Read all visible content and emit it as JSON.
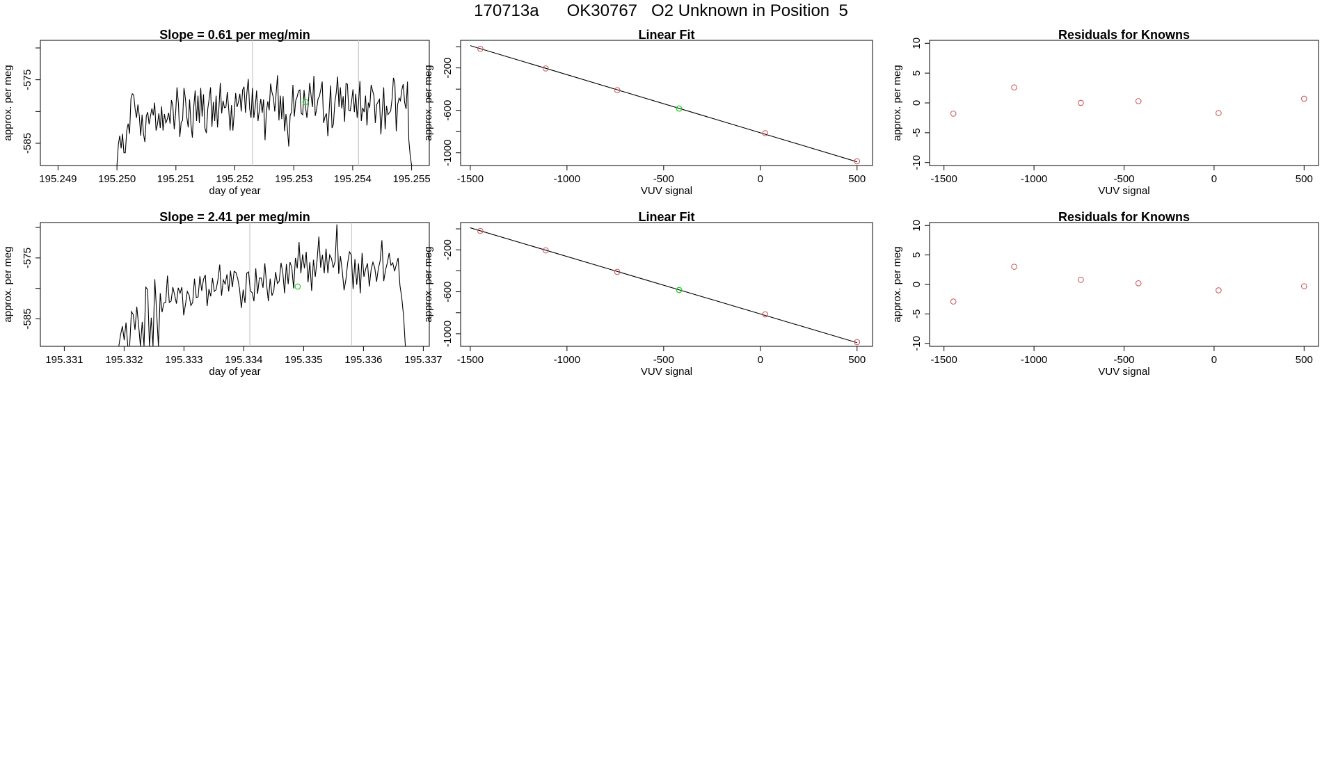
{
  "page_title": "170713a      OK30767   O2 Unknown in Position  5",
  "colors": {
    "line": "#000000",
    "known_point": "#cd5c5c",
    "unknown_point": "#22cc22",
    "vline": "#c8c8c8",
    "fit_line": "#000000"
  },
  "chart_data": [
    {
      "id": "ts1",
      "type": "line",
      "title": "Slope =  0.61  per meg/min",
      "xlabel": "day of year",
      "ylabel": "approx. per meg",
      "xlim": [
        195.2487,
        195.2553
      ],
      "ylim": [
        -588.5,
        -568.8
      ],
      "xticks": [
        "195.249",
        "195.250",
        "195.251",
        "195.252",
        "195.253",
        "195.254",
        "195.255"
      ],
      "xtick_values": [
        195.249,
        195.25,
        195.251,
        195.252,
        195.253,
        195.254,
        195.255
      ],
      "yticks": [
        -585,
        -575
      ],
      "ytick_labels": [
        "-585",
        "-575"
      ],
      "yticks_unlabeled": [
        -580,
        -570
      ],
      "vlines": [
        195.2523,
        195.2541
      ],
      "unknown_point": {
        "x": 195.2532,
        "y": -578.5
      },
      "series_x_range": [
        195.25,
        195.255
      ],
      "values": [
        -588.5,
        -585.2,
        -583.8,
        -585.8,
        -583.5,
        -586.5,
        -586.5,
        -583,
        -581.9,
        -583.5,
        -578,
        -577.2,
        -577.4,
        -579.6,
        -581,
        -578.9,
        -580.7,
        -583.8,
        -580.5,
        -583.5,
        -584.8,
        -580.7,
        -580.1,
        -582,
        -580.7,
        -579.5,
        -580.6,
        -578.6,
        -583,
        -582,
        -580.3,
        -582.6,
        -579.2,
        -583,
        -580.4,
        -581.8,
        -581.2,
        -580.2,
        -581.9,
        -578.2,
        -579.1,
        -582.8,
        -580.3,
        -576.2,
        -578.7,
        -584,
        -581.7,
        -581.4,
        -576.3,
        -578,
        -580.9,
        -582.5,
        -578.1,
        -582.1,
        -584.1,
        -579.2,
        -576.7,
        -581.5,
        -577.5,
        -581.8,
        -576.3,
        -580.8,
        -577.3,
        -582.6,
        -583.4,
        -579.6,
        -578,
        -576.2,
        -582.4,
        -578.5,
        -581.5,
        -577.5,
        -582.5,
        -579.5,
        -575.5,
        -580.3,
        -578.3,
        -579.4,
        -579.3,
        -576.9,
        -579.6,
        -583,
        -579,
        -583,
        -580.2,
        -577.1,
        -579.3,
        -578.5,
        -577.2,
        -580,
        -576.6,
        -576.1,
        -580.2,
        -577.1,
        -574.9,
        -579.5,
        -581,
        -576.3,
        -581,
        -579.3,
        -576.7,
        -581.5,
        -579.7,
        -578,
        -580.2,
        -578.1,
        -584.5,
        -580,
        -578.4,
        -579.8,
        -575.6,
        -577,
        -577.8,
        -580,
        -577.1,
        -574.3,
        -581.4,
        -577.5,
        -581.2,
        -577.6,
        -583.1,
        -580.4,
        -582.6,
        -585.5,
        -580.6,
        -580.1,
        -575.8,
        -580.8,
        -578.3,
        -577.7,
        -576.8,
        -576.6,
        -580.3,
        -580.5,
        -576.6,
        -579.3,
        -581,
        -578.8,
        -575.5,
        -577.5,
        -579.3,
        -574.4,
        -580.7,
        -579.6,
        -578,
        -577.6,
        -576.5,
        -575.3,
        -581.8,
        -580.8,
        -580.3,
        -583.9,
        -579.6,
        -575.9,
        -582.6,
        -582,
        -578.6,
        -577.1,
        -574.5,
        -579.3,
        -576.2,
        -579.5,
        -577.6,
        -581.6,
        -575.6,
        -575.7,
        -579.8,
        -579.9,
        -578.4,
        -576.5,
        -580.1,
        -577.2,
        -581,
        -578.6,
        -575.2,
        -581.5,
        -579.4,
        -580.1,
        -577.5,
        -582.2,
        -578.6,
        -579.4,
        -575.8,
        -576.7,
        -577.5,
        -581.8,
        -578.9,
        -578.5,
        -578.1,
        -583.6,
        -580,
        -576.2,
        -582.8,
        -579.1,
        -580.5,
        -580.2,
        -579.9,
        -578,
        -574.7,
        -575.5,
        -583.1,
        -578.9,
        -577.9,
        -578.3,
        -576.6,
        -575.7,
        -578.6,
        -579.6,
        -575.3,
        -584.5,
        -587,
        -588.5
      ]
    },
    {
      "id": "fit1",
      "type": "scatter",
      "title": "Linear Fit",
      "xlabel": "VUV signal",
      "ylabel": "approx. per meg",
      "xlim": [
        -1550,
        580
      ],
      "ylim": [
        -1120,
        60
      ],
      "xticks": [
        "-1500",
        "-1000",
        "-500",
        "0",
        "500"
      ],
      "xtick_values": [
        -1500,
        -1000,
        -500,
        0,
        500
      ],
      "yticks": [
        -1000,
        -600,
        -200
      ],
      "ytick_labels": [
        "-1000",
        "-600",
        "-200"
      ],
      "yticks_unlabeled": [
        -800,
        -400,
        0
      ],
      "fit_line": {
        "x0": -1500,
        "y0": 10,
        "x1": 500,
        "y1": -1085
      },
      "knowns": {
        "x": [
          -1448,
          -1110,
          -740,
          25,
          500
        ],
        "y": [
          -20,
          -205,
          -410,
          -815,
          -1080
        ]
      },
      "unknown": {
        "x": -420,
        "y": -583
      }
    },
    {
      "id": "res1",
      "type": "scatter",
      "title": "Residuals for Knowns",
      "xlabel": "VUV signal",
      "ylabel": "approx. per meg",
      "xlim": [
        -1580,
        580
      ],
      "ylim": [
        -10.5,
        10.5
      ],
      "xticks": [
        "-1500",
        "-1000",
        "-500",
        "0",
        "500"
      ],
      "xtick_values": [
        -1500,
        -1000,
        -500,
        0,
        500
      ],
      "yticks": [
        -10,
        -5,
        0,
        5,
        10
      ],
      "ytick_labels": [
        "-10",
        "-5",
        "0",
        "5",
        "10"
      ],
      "points": {
        "x": [
          -1448,
          -1110,
          -740,
          -420,
          25,
          500
        ],
        "y": [
          -1.8,
          2.6,
          0.0,
          0.3,
          -1.7,
          0.7
        ]
      }
    },
    {
      "id": "ts2",
      "type": "line",
      "title": "Slope =  2.41  per meg/min",
      "xlabel": "day of year",
      "ylabel": "approx. per meg",
      "xlim": [
        195.3306,
        195.3371
      ],
      "ylim": [
        -589.5,
        -569.2
      ],
      "xticks": [
        "195.331",
        "195.332",
        "195.333",
        "195.334",
        "195.335",
        "195.336",
        "195.337"
      ],
      "xtick_values": [
        195.331,
        195.332,
        195.333,
        195.334,
        195.335,
        195.336,
        195.337
      ],
      "yticks": [
        -585,
        -575
      ],
      "ytick_labels": [
        "-585",
        "-575"
      ],
      "yticks_unlabeled": [
        -580,
        -570
      ],
      "vlines": [
        195.3341,
        195.3358
      ],
      "unknown_point": {
        "x": 195.3349,
        "y": -579.7
      },
      "series_x_range": [
        195.3317,
        195.3367
      ],
      "values": [
        -589.5,
        -589.5,
        -589.5,
        -589.5,
        -589.5,
        -589.5,
        -589.5,
        -589.5,
        -587.6,
        -586.2,
        -588.5,
        -585.6,
        -589.5,
        -589.5,
        -583.8,
        -584.3,
        -586.8,
        -583,
        -586,
        -589.5,
        -585.5,
        -589.5,
        -579.8,
        -580.2,
        -589.5,
        -584.8,
        -589.5,
        -578.5,
        -583.9,
        -589.5,
        -580.8,
        -583.9,
        -582.4,
        -582.3,
        -577.9,
        -582.3,
        -582.1,
        -579.8,
        -581.1,
        -582.5,
        -579.9,
        -580.8,
        -579.8,
        -584.4,
        -582.6,
        -580.5,
        -581.1,
        -582.8,
        -582.3,
        -578.4,
        -581.5,
        -581.4,
        -578,
        -580.4,
        -578.5,
        -577.8,
        -582.9,
        -580.1,
        -581.3,
        -578.3,
        -580.5,
        -580.2,
        -578.6,
        -576.1,
        -581.2,
        -578.6,
        -579.3,
        -577.7,
        -580.5,
        -577.1,
        -579.8,
        -577.2,
        -577.4,
        -578.4,
        -580.1,
        -583.2,
        -580.2,
        -582.4,
        -577.5,
        -577.3,
        -580.4,
        -580.7,
        -582.1,
        -576.7,
        -580.9,
        -578.3,
        -578.3,
        -579.9,
        -575.9,
        -579.3,
        -582.1,
        -578.4,
        -581.2,
        -580.4,
        -577.3,
        -579.2,
        -578.8,
        -575.8,
        -577.5,
        -580.8,
        -576,
        -579.3,
        -575.7,
        -576.6,
        -580,
        -575,
        -576.7,
        -572.4,
        -577.5,
        -574.4,
        -576.7,
        -574,
        -579,
        -575.7,
        -580.4,
        -575.3,
        -578.1,
        -575.4,
        -571.5,
        -576.6,
        -574.5,
        -577.5,
        -573.5,
        -577.5,
        -574.5,
        -575.1,
        -576.6,
        -575.6,
        -569.5,
        -577.6,
        -574.7,
        -577.1,
        -580.3,
        -578.6,
        -575.8,
        -574,
        -574.5,
        -580.1,
        -575.2,
        -579.4,
        -575.9,
        -580.8,
        -574.2,
        -578.1,
        -576.8,
        -575.9,
        -579.7,
        -576.9,
        -575.7,
        -576.6,
        -578.9,
        -576.8,
        -575.5,
        -572.1,
        -578.8,
        -577,
        -575.8,
        -574.2,
        -576.2,
        -575.8,
        -577.2,
        -576.1,
        -575,
        -579.5,
        -581.5,
        -584.5,
        -589.5
      ]
    },
    {
      "id": "fit2",
      "type": "scatter",
      "title": "Linear Fit",
      "xlabel": "VUV signal",
      "ylabel": "approx. per meg",
      "xlim": [
        -1550,
        580
      ],
      "ylim": [
        -1120,
        60
      ],
      "xticks": [
        "-1500",
        "-1000",
        "-500",
        "0",
        "500"
      ],
      "xtick_values": [
        -1500,
        -1000,
        -500,
        0,
        500
      ],
      "yticks": [
        -1000,
        -600,
        -200
      ],
      "ytick_labels": [
        "-1000",
        "-600",
        "-200"
      ],
      "yticks_unlabeled": [
        -800,
        -400,
        0
      ],
      "fit_line": {
        "x0": -1500,
        "y0": 10,
        "x1": 500,
        "y1": -1085
      },
      "knowns": {
        "x": [
          -1448,
          -1110,
          -740,
          25,
          500
        ],
        "y": [
          -20,
          -205,
          -410,
          -815,
          -1080
        ]
      },
      "unknown": {
        "x": -420,
        "y": -583
      }
    },
    {
      "id": "res2",
      "type": "scatter",
      "title": "Residuals for Knowns",
      "xlabel": "VUV signal",
      "ylabel": "approx. per meg",
      "xlim": [
        -1580,
        580
      ],
      "ylim": [
        -10.5,
        10.5
      ],
      "xticks": [
        "-1500",
        "-1000",
        "-500",
        "0",
        "500"
      ],
      "xtick_values": [
        -1500,
        -1000,
        -500,
        0,
        500
      ],
      "yticks": [
        -10,
        -5,
        0,
        5,
        10
      ],
      "ytick_labels": [
        "-10",
        "-5",
        "0",
        "5",
        "10"
      ],
      "points": {
        "x": [
          -1448,
          -1110,
          -740,
          -420,
          25,
          500
        ],
        "y": [
          -2.9,
          3.0,
          0.8,
          0.2,
          -1.0,
          -0.3
        ]
      }
    }
  ]
}
